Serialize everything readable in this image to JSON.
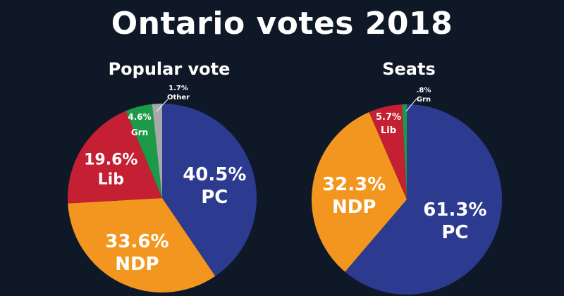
{
  "page": {
    "title": "Ontario votes 2018"
  },
  "colors": {
    "background": "#0f1827",
    "PC": "#2c3a8f",
    "NDP": "#f3961f",
    "Lib": "#c41f32",
    "Grn": "#1c9a47",
    "Other": "#a7a9ab"
  },
  "chart_data": [
    {
      "type": "pie",
      "title": "Popular vote",
      "slices": [
        {
          "name": "PC",
          "value": 40.5,
          "label": "40.5%"
        },
        {
          "name": "NDP",
          "value": 33.6,
          "label": "33.6%"
        },
        {
          "name": "Lib",
          "value": 19.6,
          "label": "19.6%"
        },
        {
          "name": "Grn",
          "value": 4.6,
          "label": "4.6%"
        },
        {
          "name": "Other",
          "value": 1.7,
          "label": "1.7%"
        }
      ]
    },
    {
      "type": "pie",
      "title": "Seats",
      "slices": [
        {
          "name": "PC",
          "value": 61.3,
          "label": "61.3%"
        },
        {
          "name": "NDP",
          "value": 32.3,
          "label": "32.3%"
        },
        {
          "name": "Lib",
          "value": 5.7,
          "label": "5.7%"
        },
        {
          "name": "Grn",
          "value": 0.8,
          "label": ".8%"
        }
      ]
    }
  ]
}
